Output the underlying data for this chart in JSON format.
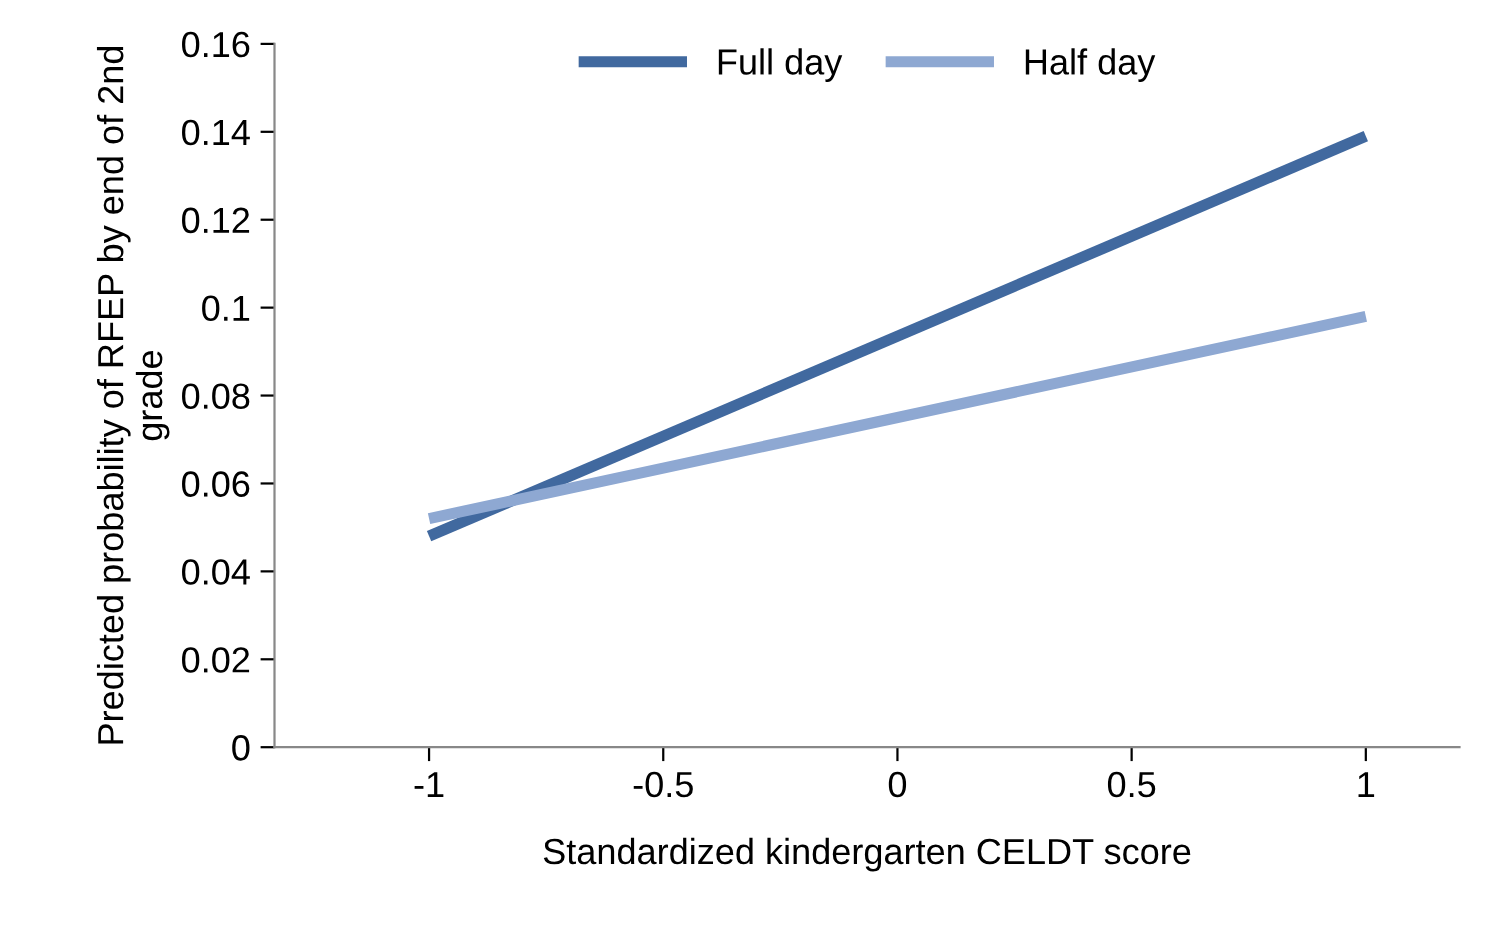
{
  "chart_data": {
    "type": "line",
    "xlabel": "Standardized kindergarten CELDT score",
    "ylabel": "Predicted probability of RFEP by end of 2nd grade",
    "x": [
      -1,
      1
    ],
    "series": [
      {
        "name": "Full day",
        "color": "#41699f",
        "values": [
          0.048,
          0.139
        ]
      },
      {
        "name": "Half day",
        "color": "#8ea8d2",
        "values": [
          0.052,
          0.098
        ]
      }
    ],
    "xlim": [
      -1.33,
      1.2
    ],
    "xticks": [
      -1,
      -0.5,
      0,
      0.5,
      1
    ],
    "ylim": [
      0,
      0.16
    ],
    "yticks": [
      0,
      0.02,
      0.04,
      0.06,
      0.08,
      {
        "value": 0.1,
        "label": "0.1"
      },
      0.12,
      0.14,
      0.16
    ],
    "grid": false,
    "legend": "top",
    "marker": "none",
    "line_style": "solid"
  }
}
